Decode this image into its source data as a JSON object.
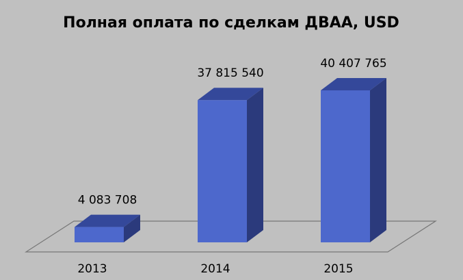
{
  "chart_data": {
    "type": "bar",
    "title": "Полная оплата по сделкам ДВАА, USD",
    "categories": [
      "2013",
      "2014",
      "2015"
    ],
    "values": [
      4083708,
      37815540,
      40407765
    ],
    "value_labels": [
      "4 083 708",
      "37 815 540",
      "40 407 765"
    ],
    "ylim": [
      0,
      40407765
    ],
    "three_d": true,
    "grid": false,
    "legend": "none",
    "colors": {
      "front": "#4d68cc",
      "top": "#34489a",
      "side": "#2b3a7c",
      "background": "#c0c0c0",
      "floor_stroke": "#777777"
    }
  }
}
